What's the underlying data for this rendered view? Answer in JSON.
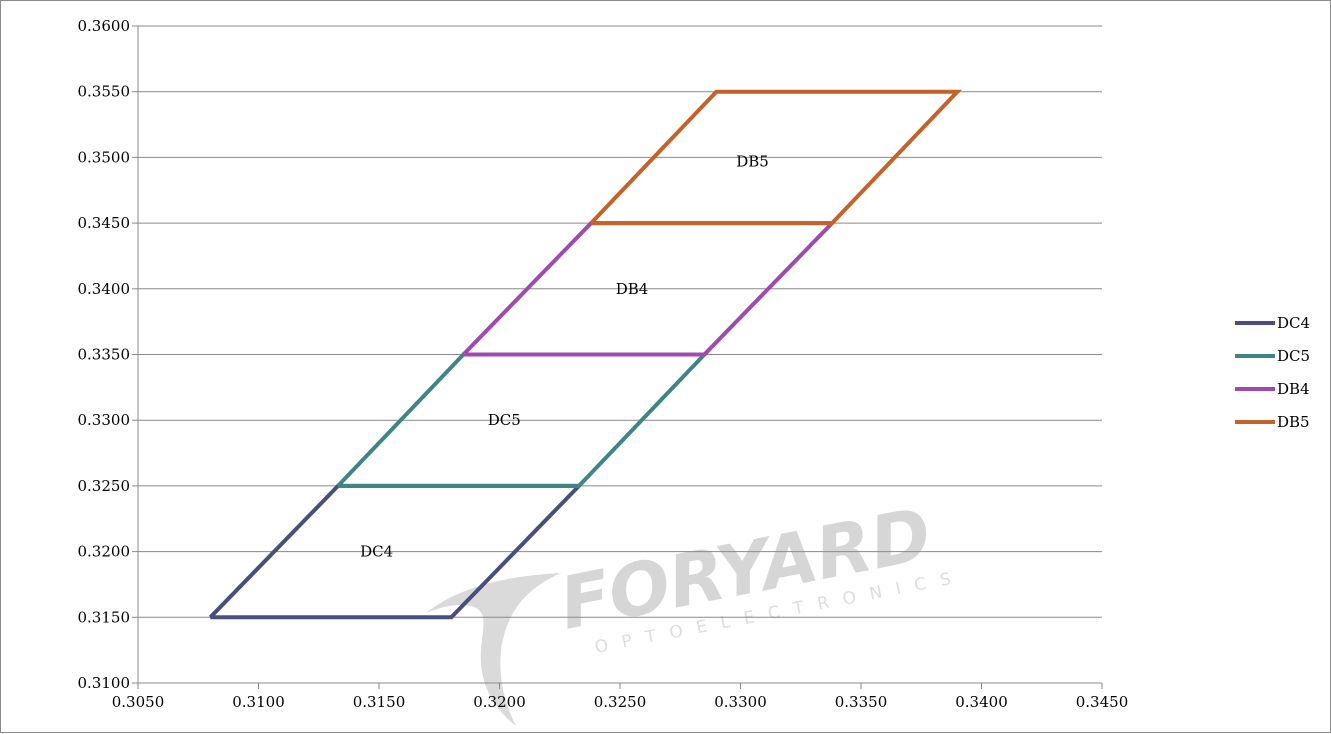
{
  "watermark": {
    "brand": "FORYARD",
    "tagline": "OPTOELECTRONICS"
  },
  "chart_data": {
    "type": "line",
    "title": "",
    "xlabel": "",
    "ylabel": "",
    "xlim": [
      0.305,
      0.345
    ],
    "ylim": [
      0.31,
      0.36
    ],
    "x_ticks": [
      "0.3050",
      "0.3100",
      "0.3150",
      "0.3200",
      "0.3250",
      "0.3300",
      "0.3350",
      "0.3400",
      "0.3450"
    ],
    "y_ticks": [
      "0.3100",
      "0.3150",
      "0.3200",
      "0.3250",
      "0.3300",
      "0.3350",
      "0.3400",
      "0.3450",
      "0.3500",
      "0.3550",
      "0.3600"
    ],
    "grid": "horizontal",
    "legend_position": "right",
    "series": [
      {
        "name": "DC4",
        "color": "#4a4e7e",
        "points": [
          [
            0.308,
            0.315
          ],
          [
            0.318,
            0.315
          ],
          [
            0.3233,
            0.325
          ],
          [
            0.3133,
            0.325
          ],
          [
            0.308,
            0.315
          ]
        ]
      },
      {
        "name": "DC5",
        "color": "#3f8585",
        "points": [
          [
            0.3133,
            0.325
          ],
          [
            0.3233,
            0.325
          ],
          [
            0.3285,
            0.335
          ],
          [
            0.3185,
            0.335
          ],
          [
            0.3133,
            0.325
          ]
        ]
      },
      {
        "name": "DB4",
        "color": "#a04ab0",
        "points": [
          [
            0.3185,
            0.335
          ],
          [
            0.3285,
            0.335
          ],
          [
            0.3338,
            0.345
          ],
          [
            0.3238,
            0.345
          ],
          [
            0.3185,
            0.335
          ]
        ]
      },
      {
        "name": "DB5",
        "color": "#c4622a",
        "points": [
          [
            0.3238,
            0.345
          ],
          [
            0.3338,
            0.345
          ],
          [
            0.339,
            0.355
          ],
          [
            0.329,
            0.355
          ],
          [
            0.3238,
            0.345
          ]
        ]
      }
    ],
    "annotations": [
      {
        "text": "DC4",
        "x": 0.3149,
        "y": 0.32
      },
      {
        "text": "DC5",
        "x": 0.3202,
        "y": 0.33
      },
      {
        "text": "DB4",
        "x": 0.3255,
        "y": 0.34
      },
      {
        "text": "DB5",
        "x": 0.3305,
        "y": 0.3497
      }
    ]
  }
}
